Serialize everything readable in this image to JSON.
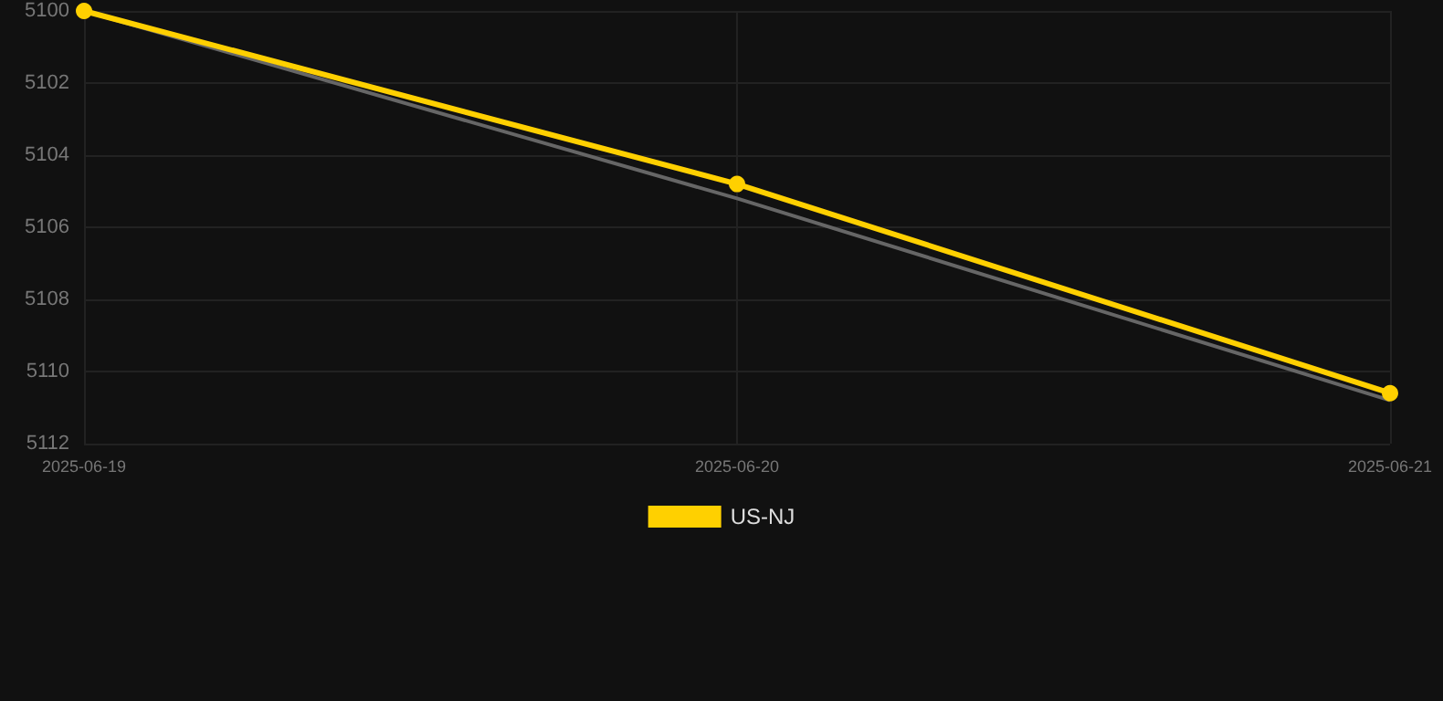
{
  "chart_data": {
    "type": "line",
    "x": [
      "2025-06-19",
      "2025-06-20",
      "2025-06-21"
    ],
    "series": [
      {
        "color": "#666666",
        "values": [
          5100,
          5105.2,
          5110.8
        ],
        "marker": "none"
      },
      {
        "name": "US-NJ",
        "color": "#ffd000",
        "values": [
          5100,
          5104.8,
          5110.6
        ],
        "marker": "circle"
      }
    ],
    "xlim": [
      "2025-06-19",
      "2025-06-21"
    ],
    "xticks": [
      "2025-06-19",
      "2025-06-20",
      "2025-06-21"
    ],
    "ylim": [
      5112,
      5100
    ],
    "yticks": [
      5100,
      5102,
      5104,
      5106,
      5108,
      5110,
      5112
    ],
    "grid": true,
    "legend": "bottom",
    "line_style": "solid"
  }
}
